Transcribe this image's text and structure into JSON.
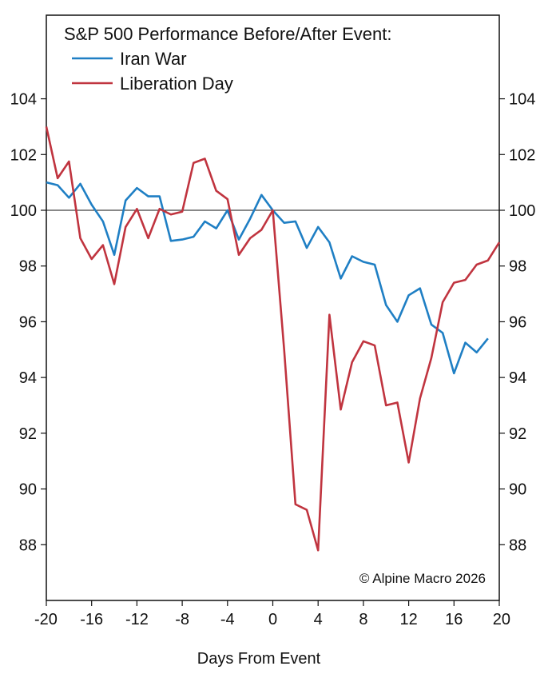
{
  "chart_data": {
    "type": "line",
    "legend_title": "S&P 500 Performance Before/After Event:",
    "legend_position": "top-left",
    "xlabel": "Days From Event",
    "ylabel": "",
    "xlim": [
      -20,
      20
    ],
    "ylim": [
      86,
      107
    ],
    "x_ticks": [
      -20,
      -16,
      -12,
      -8,
      -4,
      0,
      4,
      8,
      12,
      16,
      20
    ],
    "x_tick_labels": [
      "-20",
      "-16",
      "-12",
      "-8",
      "-4",
      "0",
      "4",
      "8",
      "12",
      "16",
      "20"
    ],
    "y_ticks": [
      88,
      90,
      92,
      94,
      96,
      98,
      100,
      102,
      104
    ],
    "y_tick_labels": [
      "88",
      "90",
      "92",
      "94",
      "96",
      "98",
      "100",
      "102",
      "104"
    ],
    "reference_line": 100,
    "grid": false,
    "annotation": "© Alpine Macro 2026",
    "series": [
      {
        "name": "Iran War",
        "color": "#1f7fc4",
        "x": [
          -20,
          -19,
          -18,
          -17,
          -16,
          -15,
          -14,
          -13,
          -12,
          -11,
          -10,
          -9,
          -8,
          -7,
          -6,
          -5,
          -4,
          -3,
          -2,
          -1,
          0,
          1,
          2,
          3,
          4,
          5,
          6,
          7,
          8,
          9,
          10,
          11,
          12,
          13,
          14,
          15,
          16,
          17,
          18,
          19
        ],
        "y": [
          101.0,
          100.9,
          100.45,
          100.95,
          100.2,
          99.6,
          98.4,
          100.35,
          100.8,
          100.5,
          100.5,
          98.9,
          98.95,
          99.05,
          99.6,
          99.35,
          100.0,
          98.95,
          99.7,
          100.55,
          100.0,
          99.55,
          99.6,
          98.65,
          99.4,
          98.85,
          97.55,
          98.35,
          98.15,
          98.05,
          96.6,
          96.0,
          96.95,
          97.2,
          95.9,
          95.6,
          94.15,
          95.25,
          94.9,
          95.4
        ]
      },
      {
        "name": "Liberation Day",
        "color": "#c0343f",
        "x": [
          -20,
          -19,
          -18,
          -17,
          -16,
          -15,
          -14,
          -13,
          -12,
          -11,
          -10,
          -9,
          -8,
          -7,
          -6,
          -5,
          -4,
          -3,
          -2,
          -1,
          0,
          1,
          2,
          3,
          4,
          5,
          6,
          7,
          8,
          9,
          10,
          11,
          12,
          13,
          14,
          15,
          16,
          17,
          18,
          19,
          20
        ],
        "y": [
          103.0,
          101.15,
          101.75,
          99.0,
          98.25,
          98.75,
          97.35,
          99.4,
          100.05,
          99.0,
          100.05,
          99.85,
          99.95,
          101.7,
          101.85,
          100.7,
          100.4,
          98.4,
          99.0,
          99.3,
          100.0,
          95.0,
          89.45,
          89.25,
          87.8,
          96.25,
          92.85,
          94.55,
          95.3,
          95.15,
          93.0,
          93.1,
          90.95,
          93.25,
          94.7,
          96.7,
          97.4,
          97.5,
          98.05,
          98.2,
          98.85
        ]
      }
    ]
  }
}
